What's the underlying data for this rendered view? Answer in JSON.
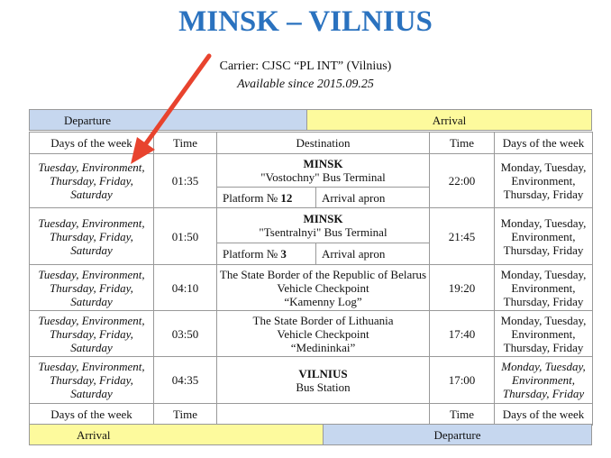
{
  "title": "MINSK – VILNIUS",
  "carrier": "Carrier: CJSC “PL INT” (Vilnius)",
  "available": "Available since 2015.09.25",
  "top_bands": {
    "departure": "Departure",
    "arrival": "Arrival"
  },
  "bottom_bands": {
    "arrival": "Arrival",
    "departure": "Departure"
  },
  "headers": {
    "days_left": "Days of the week",
    "time_left": "Time",
    "destination": "Destination",
    "time_right": "Time",
    "days_right": "Days of the week"
  },
  "footer": {
    "days_left": "Days of the week",
    "time_left": "Time",
    "destination": "",
    "time_right": "Time",
    "days_right": "Days of the week"
  },
  "rows": [
    {
      "dep_days": "Tuesday, Environment, Thursday, Friday, Saturday",
      "dep_time": "01:35",
      "dest_bold": "MINSK",
      "dest_text": "\"Vostochny\" Bus Terminal",
      "platform_label": "Platform №",
      "platform_num": "12",
      "apron": "Arrival apron",
      "arr_time": "22:00",
      "arr_days": "Monday, Tuesday, Environment, Thursday, Friday",
      "arr_italic": false
    },
    {
      "dep_days": "Tuesday, Environment, Thursday, Friday, Saturday",
      "dep_time": "01:50",
      "dest_bold": "MINSK",
      "dest_text": "\"Tsentralnyi\" Bus Terminal",
      "platform_label": "Platform №",
      "platform_num": "3",
      "apron": "Arrival apron",
      "arr_time": "21:45",
      "arr_days": "Monday, Tuesday, Environment, Thursday, Friday",
      "arr_italic": false
    },
    {
      "dep_days": "Tuesday, Environment, Thursday, Friday, Saturday",
      "dep_time": "04:10",
      "dest_bold": "",
      "dest_text": "The State Border of the Republic of Belarus\nVehicle Checkpoint\n“Kamenny Log”",
      "arr_time": "19:20",
      "arr_days": "Monday, Tuesday, Environment, Thursday, Friday",
      "arr_italic": false
    },
    {
      "dep_days": "Tuesday, Environment, Thursday, Friday, Saturday",
      "dep_time": "03:50",
      "dest_bold": "",
      "dest_text": "The State Border of Lithuania\nVehicle Checkpoint\n“Medininkai”",
      "arr_time": "17:40",
      "arr_days": "Monday, Tuesday, Environment, Thursday, Friday",
      "arr_italic": false
    },
    {
      "dep_days": "Tuesday, Environment, Thursday, Friday, Saturday",
      "dep_time": "04:35",
      "dest_bold": "VILNIUS",
      "dest_text": "Bus Station",
      "arr_time": "17:00",
      "arr_days": "Monday, Tuesday, Environment, Thursday, Friday",
      "arr_italic": true
    }
  ],
  "colors": {
    "title": "#2a72bf",
    "departure_band": "#c6d7ef",
    "arrival_band": "#fdfa9d",
    "arrow": "#e8432e"
  }
}
